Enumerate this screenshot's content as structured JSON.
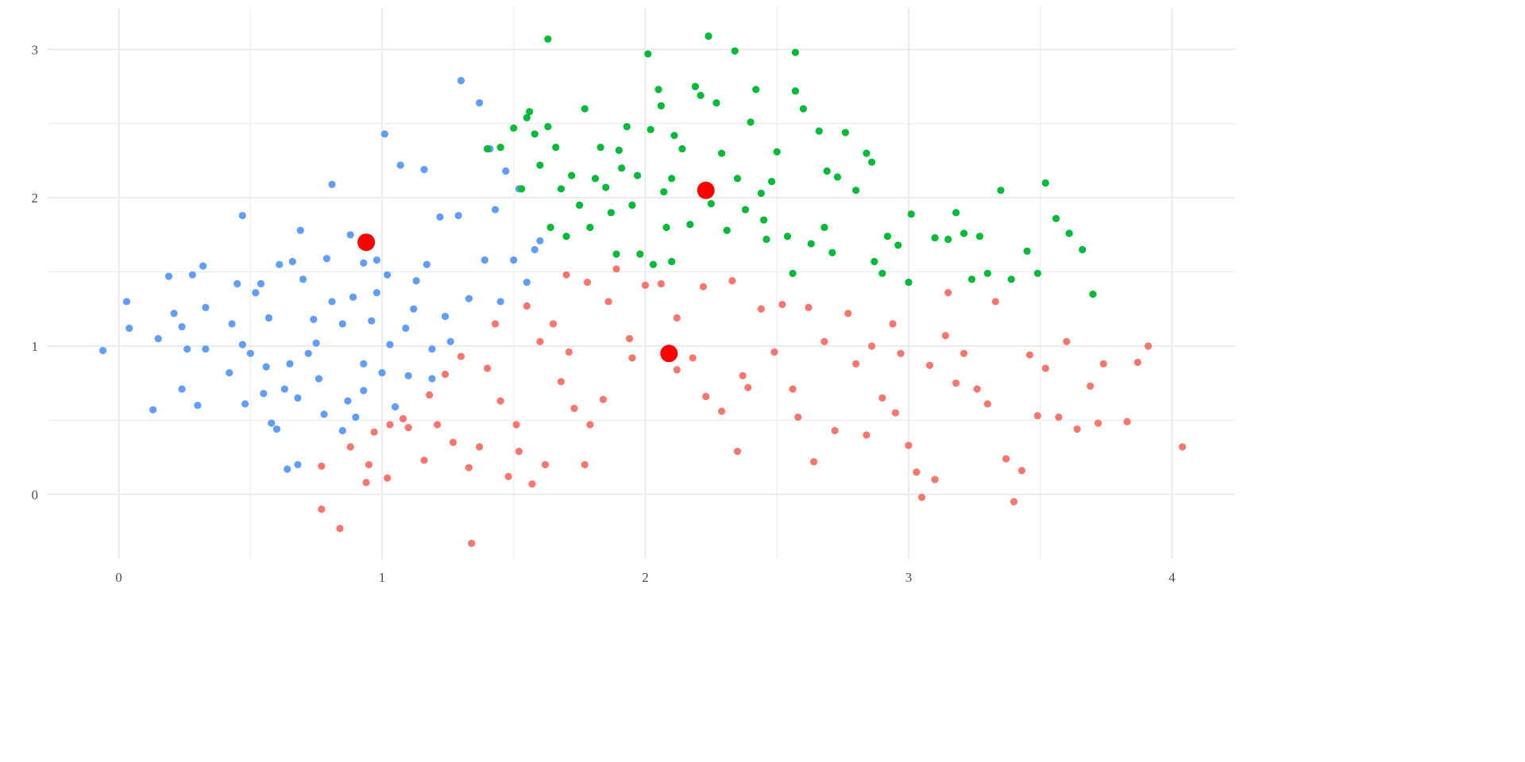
{
  "chart_data": {
    "type": "scatter",
    "title": "",
    "xlabel": "",
    "ylabel": "",
    "xlim": [
      -0.27,
      4.24
    ],
    "ylim": [
      -0.44,
      3.28
    ],
    "x_ticks": [
      "0",
      "1",
      "2",
      "3",
      "4"
    ],
    "y_ticks": [
      "0",
      "1",
      "2",
      "3"
    ],
    "grid": true,
    "legend": "none",
    "colors": {
      "blue": "#619CFF",
      "green": "#00BA38",
      "red": "#F8766D",
      "centroid": "#FF0000"
    },
    "series": [
      {
        "color": "#619CFF",
        "points": [
          [
            -0.06,
            0.97
          ],
          [
            0.03,
            1.3
          ],
          [
            0.04,
            1.12
          ],
          [
            0.13,
            0.57
          ],
          [
            0.15,
            1.05
          ],
          [
            0.19,
            1.47
          ],
          [
            0.21,
            1.22
          ],
          [
            0.24,
            0.71
          ],
          [
            0.24,
            1.13
          ],
          [
            0.26,
            0.98
          ],
          [
            0.28,
            1.48
          ],
          [
            0.3,
            0.6
          ],
          [
            0.32,
            1.54
          ],
          [
            0.33,
            1.26
          ],
          [
            0.33,
            0.98
          ],
          [
            0.43,
            1.15
          ],
          [
            0.45,
            1.42
          ],
          [
            0.47,
            1.88
          ],
          [
            0.47,
            1.01
          ],
          [
            0.48,
            0.61
          ],
          [
            0.5,
            0.95
          ],
          [
            0.52,
            1.36
          ],
          [
            0.54,
            1.42
          ],
          [
            0.55,
            0.68
          ],
          [
            0.57,
            1.19
          ],
          [
            0.58,
            0.48
          ],
          [
            0.6,
            0.44
          ],
          [
            0.61,
            1.55
          ],
          [
            0.63,
            0.71
          ],
          [
            0.64,
            0.17
          ],
          [
            0.66,
            1.57
          ],
          [
            0.68,
            0.65
          ],
          [
            0.68,
            0.2
          ],
          [
            0.69,
            1.78
          ],
          [
            0.7,
            1.45
          ],
          [
            0.72,
            0.95
          ],
          [
            0.74,
            1.18
          ],
          [
            0.76,
            0.78
          ],
          [
            0.78,
            0.54
          ],
          [
            0.79,
            1.59
          ],
          [
            0.81,
            1.3
          ],
          [
            0.81,
            2.09
          ],
          [
            0.85,
            1.15
          ],
          [
            0.85,
            0.43
          ],
          [
            0.87,
            0.63
          ],
          [
            0.88,
            1.75
          ],
          [
            0.89,
            1.33
          ],
          [
            0.9,
            0.52
          ],
          [
            0.93,
            1.56
          ],
          [
            0.93,
            0.7
          ],
          [
            0.96,
            1.17
          ],
          [
            0.98,
            1.58
          ],
          [
            1.0,
            0.82
          ],
          [
            1.01,
            2.43
          ],
          [
            1.02,
            1.48
          ],
          [
            1.05,
            0.59
          ],
          [
            1.07,
            2.22
          ],
          [
            1.09,
            1.12
          ],
          [
            1.1,
            0.8
          ],
          [
            1.13,
            1.44
          ],
          [
            1.16,
            2.19
          ],
          [
            1.17,
            1.55
          ],
          [
            1.19,
            0.98
          ],
          [
            1.22,
            1.87
          ],
          [
            1.24,
            1.2
          ],
          [
            1.26,
            1.03
          ],
          [
            1.29,
            1.88
          ],
          [
            1.3,
            2.79
          ],
          [
            1.33,
            1.32
          ],
          [
            1.37,
            2.64
          ],
          [
            1.39,
            1.58
          ],
          [
            1.41,
            2.33
          ],
          [
            1.43,
            1.92
          ],
          [
            1.45,
            1.3
          ],
          [
            1.47,
            2.18
          ],
          [
            1.5,
            1.58
          ],
          [
            1.52,
            2.06
          ],
          [
            1.55,
            1.43
          ],
          [
            1.58,
            1.65
          ],
          [
            1.6,
            1.71
          ],
          [
            0.42,
            0.82
          ],
          [
            0.65,
            0.88
          ],
          [
            0.75,
            1.02
          ],
          [
            0.93,
            0.88
          ],
          [
            1.03,
            1.01
          ],
          [
            1.12,
            1.25
          ],
          [
            0.56,
            0.86
          ],
          [
            0.98,
            1.36
          ],
          [
            1.19,
            0.78
          ]
        ]
      },
      {
        "color": "#00BA38",
        "points": [
          [
            1.4,
            2.33
          ],
          [
            1.45,
            2.34
          ],
          [
            1.5,
            2.47
          ],
          [
            1.53,
            2.06
          ],
          [
            1.55,
            2.54
          ],
          [
            1.56,
            2.58
          ],
          [
            1.58,
            2.43
          ],
          [
            1.6,
            2.22
          ],
          [
            1.63,
            3.07
          ],
          [
            1.63,
            2.48
          ],
          [
            1.64,
            1.8
          ],
          [
            1.66,
            2.34
          ],
          [
            1.68,
            2.06
          ],
          [
            1.7,
            1.74
          ],
          [
            1.72,
            2.15
          ],
          [
            1.75,
            1.95
          ],
          [
            1.77,
            2.6
          ],
          [
            1.79,
            1.8
          ],
          [
            1.81,
            2.13
          ],
          [
            1.83,
            2.34
          ],
          [
            1.85,
            2.07
          ],
          [
            1.87,
            1.9
          ],
          [
            1.89,
            1.62
          ],
          [
            1.91,
            2.2
          ],
          [
            1.93,
            2.48
          ],
          [
            1.95,
            1.95
          ],
          [
            1.97,
            2.15
          ],
          [
            1.98,
            1.62
          ],
          [
            2.01,
            2.97
          ],
          [
            2.02,
            2.46
          ],
          [
            2.03,
            1.55
          ],
          [
            2.05,
            2.73
          ],
          [
            2.06,
            2.62
          ],
          [
            2.07,
            2.04
          ],
          [
            2.08,
            1.8
          ],
          [
            2.1,
            1.57
          ],
          [
            2.11,
            2.42
          ],
          [
            2.14,
            2.33
          ],
          [
            2.17,
            1.82
          ],
          [
            2.19,
            2.75
          ],
          [
            2.21,
            2.69
          ],
          [
            2.24,
            3.09
          ],
          [
            2.25,
            1.96
          ],
          [
            2.27,
            2.64
          ],
          [
            2.29,
            2.3
          ],
          [
            2.31,
            1.78
          ],
          [
            2.34,
            2.99
          ],
          [
            2.35,
            2.13
          ],
          [
            2.38,
            1.92
          ],
          [
            2.4,
            2.51
          ],
          [
            2.42,
            2.73
          ],
          [
            2.44,
            2.03
          ],
          [
            2.46,
            1.72
          ],
          [
            2.48,
            2.11
          ],
          [
            2.5,
            2.31
          ],
          [
            2.54,
            1.74
          ],
          [
            2.56,
            1.49
          ],
          [
            2.57,
            2.98
          ],
          [
            2.57,
            2.72
          ],
          [
            2.6,
            2.6
          ],
          [
            2.63,
            1.69
          ],
          [
            2.66,
            2.45
          ],
          [
            2.69,
            2.18
          ],
          [
            2.71,
            1.63
          ],
          [
            2.73,
            2.14
          ],
          [
            2.76,
            2.44
          ],
          [
            2.8,
            2.05
          ],
          [
            2.84,
            2.3
          ],
          [
            2.86,
            2.24
          ],
          [
            2.87,
            1.57
          ],
          [
            2.92,
            1.74
          ],
          [
            2.96,
            1.68
          ],
          [
            3.0,
            1.43
          ],
          [
            3.01,
            1.89
          ],
          [
            3.1,
            1.73
          ],
          [
            3.15,
            1.72
          ],
          [
            3.18,
            1.9
          ],
          [
            3.21,
            1.76
          ],
          [
            3.27,
            1.74
          ],
          [
            3.3,
            1.49
          ],
          [
            3.35,
            2.05
          ],
          [
            3.39,
            1.45
          ],
          [
            3.45,
            1.64
          ],
          [
            3.49,
            1.49
          ],
          [
            3.52,
            2.1
          ],
          [
            3.56,
            1.86
          ],
          [
            3.61,
            1.76
          ],
          [
            3.66,
            1.65
          ],
          [
            3.7,
            1.35
          ],
          [
            2.1,
            2.13
          ],
          [
            1.9,
            2.32
          ],
          [
            2.45,
            1.85
          ],
          [
            2.68,
            1.8
          ],
          [
            2.9,
            1.49
          ],
          [
            3.24,
            1.45
          ]
        ]
      },
      {
        "color": "#F8766D",
        "points": [
          [
            0.77,
            0.19
          ],
          [
            0.77,
            -0.1
          ],
          [
            0.84,
            -0.23
          ],
          [
            0.88,
            0.32
          ],
          [
            0.94,
            0.08
          ],
          [
            0.95,
            0.2
          ],
          [
            0.97,
            0.42
          ],
          [
            1.02,
            0.11
          ],
          [
            1.03,
            0.47
          ],
          [
            1.08,
            0.51
          ],
          [
            1.1,
            0.45
          ],
          [
            1.16,
            0.23
          ],
          [
            1.18,
            0.67
          ],
          [
            1.21,
            0.47
          ],
          [
            1.24,
            0.81
          ],
          [
            1.27,
            0.35
          ],
          [
            1.3,
            0.93
          ],
          [
            1.33,
            0.18
          ],
          [
            1.34,
            -0.33
          ],
          [
            1.37,
            0.32
          ],
          [
            1.4,
            0.85
          ],
          [
            1.43,
            1.15
          ],
          [
            1.45,
            0.63
          ],
          [
            1.48,
            0.12
          ],
          [
            1.51,
            0.47
          ],
          [
            1.52,
            0.29
          ],
          [
            1.55,
            1.27
          ],
          [
            1.57,
            0.07
          ],
          [
            1.6,
            1.03
          ],
          [
            1.62,
            0.2
          ],
          [
            1.65,
            1.15
          ],
          [
            1.68,
            0.76
          ],
          [
            1.7,
            1.48
          ],
          [
            1.71,
            0.96
          ],
          [
            1.73,
            0.58
          ],
          [
            1.77,
            0.2
          ],
          [
            1.78,
            1.43
          ],
          [
            1.79,
            0.47
          ],
          [
            1.84,
            0.64
          ],
          [
            1.86,
            1.3
          ],
          [
            1.89,
            1.52
          ],
          [
            1.94,
            1.05
          ],
          [
            1.95,
            0.92
          ],
          [
            2.0,
            1.41
          ],
          [
            2.06,
            1.42
          ],
          [
            2.12,
            1.19
          ],
          [
            2.12,
            0.84
          ],
          [
            2.18,
            0.92
          ],
          [
            2.22,
            1.4
          ],
          [
            2.23,
            0.66
          ],
          [
            2.29,
            0.56
          ],
          [
            2.33,
            1.44
          ],
          [
            2.35,
            0.29
          ],
          [
            2.37,
            0.8
          ],
          [
            2.39,
            0.72
          ],
          [
            2.44,
            1.25
          ],
          [
            2.49,
            0.96
          ],
          [
            2.52,
            1.28
          ],
          [
            2.56,
            0.71
          ],
          [
            2.62,
            1.26
          ],
          [
            2.64,
            0.22
          ],
          [
            2.68,
            1.03
          ],
          [
            2.72,
            0.43
          ],
          [
            2.77,
            1.22
          ],
          [
            2.8,
            0.88
          ],
          [
            2.84,
            0.4
          ],
          [
            2.86,
            1.0
          ],
          [
            2.9,
            0.65
          ],
          [
            2.94,
            1.15
          ],
          [
            2.97,
            0.95
          ],
          [
            3.0,
            0.33
          ],
          [
            3.03,
            0.15
          ],
          [
            3.05,
            -0.02
          ],
          [
            3.08,
            0.87
          ],
          [
            3.1,
            0.1
          ],
          [
            3.14,
            1.07
          ],
          [
            3.18,
            0.75
          ],
          [
            3.21,
            0.95
          ],
          [
            3.26,
            0.71
          ],
          [
            3.3,
            0.61
          ],
          [
            3.33,
            1.3
          ],
          [
            3.37,
            0.24
          ],
          [
            3.4,
            -0.05
          ],
          [
            3.43,
            0.16
          ],
          [
            3.46,
            0.94
          ],
          [
            3.49,
            0.53
          ],
          [
            3.52,
            0.85
          ],
          [
            3.57,
            0.52
          ],
          [
            3.6,
            1.03
          ],
          [
            3.64,
            0.44
          ],
          [
            3.69,
            0.73
          ],
          [
            3.74,
            0.88
          ],
          [
            3.83,
            0.49
          ],
          [
            3.87,
            0.89
          ],
          [
            3.91,
            1.0
          ],
          [
            4.04,
            0.32
          ],
          [
            3.72,
            0.48
          ],
          [
            2.58,
            0.52
          ],
          [
            2.95,
            0.55
          ],
          [
            3.15,
            1.36
          ]
        ]
      }
    ],
    "centroids": [
      [
        0.94,
        1.7
      ],
      [
        2.23,
        2.05
      ],
      [
        2.09,
        0.95
      ]
    ]
  }
}
